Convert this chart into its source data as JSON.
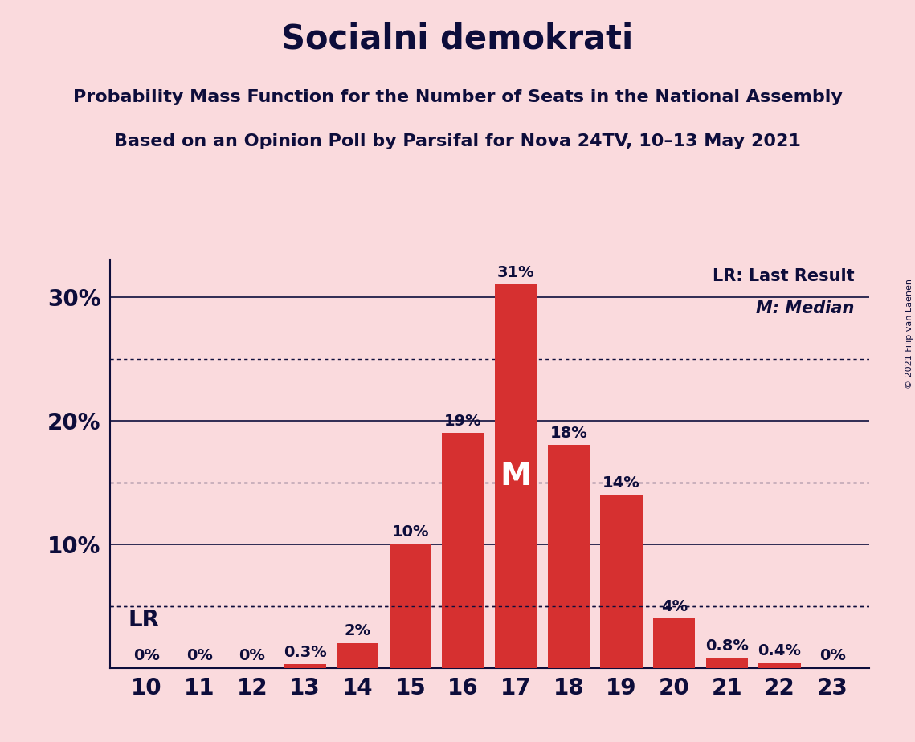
{
  "title": "Socialni demokrati",
  "subtitle1": "Probability Mass Function for the Number of Seats in the National Assembly",
  "subtitle2": "Based on an Opinion Poll by Parsifal for Nova 24TV, 10–13 May 2021",
  "copyright": "© 2021 Filip van Laenen",
  "seats": [
    10,
    11,
    12,
    13,
    14,
    15,
    16,
    17,
    18,
    19,
    20,
    21,
    22,
    23
  ],
  "probabilities": [
    0.0,
    0.0,
    0.0,
    0.3,
    2.0,
    10.0,
    19.0,
    31.0,
    18.0,
    14.0,
    4.0,
    0.8,
    0.4,
    0.0
  ],
  "bar_labels": [
    "0%",
    "0%",
    "0%",
    "0.3%",
    "2%",
    "10%",
    "19%",
    "31%",
    "18%",
    "14%",
    "4%",
    "0.8%",
    "0.4%",
    "0%"
  ],
  "bar_color": "#d63030",
  "median_seat": 17,
  "median_label": "M",
  "lr_value": 5.0,
  "lr_label": "LR",
  "background_color": "#fadadd",
  "text_color": "#0d0d3b",
  "ylim": [
    0,
    33
  ],
  "solid_gridlines": [
    10,
    20,
    30
  ],
  "dotted_gridlines": [
    5,
    15,
    25
  ],
  "yticks": [
    10,
    20,
    30
  ],
  "legend_lr": "LR: Last Result",
  "legend_m": "M: Median",
  "title_fontsize": 30,
  "subtitle_fontsize": 16,
  "bar_label_fontsize": 14,
  "axis_tick_fontsize": 20,
  "legend_fontsize": 15
}
